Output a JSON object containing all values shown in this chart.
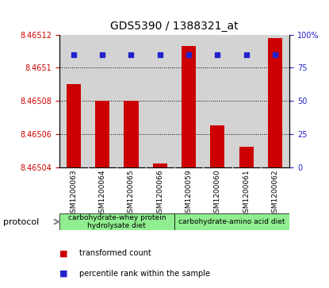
{
  "title": "GDS5390 / 1388321_at",
  "samples": [
    "GSM1200063",
    "GSM1200064",
    "GSM1200065",
    "GSM1200066",
    "GSM1200059",
    "GSM1200060",
    "GSM1200061",
    "GSM1200062"
  ],
  "red_values": [
    8.46509,
    8.46508,
    8.46508,
    8.465042,
    8.465113,
    8.465065,
    8.465052,
    8.465118
  ],
  "blue_values": [
    85,
    85,
    85,
    85,
    85,
    85,
    85,
    85
  ],
  "ylim_left": [
    8.46504,
    8.46512
  ],
  "ylim_right": [
    0,
    100
  ],
  "yticks_left": [
    8.46504,
    8.46506,
    8.46508,
    8.4651,
    8.46512
  ],
  "ytick_labels_left": [
    "8.46504",
    "8.46506",
    "8.46508",
    "8.4651",
    "8.46512"
  ],
  "yticks_right": [
    0,
    25,
    50,
    75,
    100
  ],
  "ytick_labels_right": [
    "0",
    "25",
    "50",
    "75",
    "100%"
  ],
  "groups": [
    {
      "label": "carbohydrate-whey protein\nhydrolysate diet",
      "color": "#90ee90",
      "start": 0,
      "end": 4
    },
    {
      "label": "carbohydrate-amino acid diet",
      "color": "#90ee90",
      "start": 4,
      "end": 8
    }
  ],
  "protocol_label": "protocol",
  "bar_color": "#cc0000",
  "dot_color": "#2222cc",
  "bar_width": 0.5,
  "baseline": 8.46504,
  "legend_items": [
    {
      "color": "#cc0000",
      "label": "transformed count"
    },
    {
      "color": "#2222cc",
      "label": "percentile rank within the sample"
    }
  ],
  "grid_color": "black",
  "tick_color_left": "#cc0000",
  "tick_color_right": "#2222cc",
  "bg_color": "white",
  "sample_area_color": "#d3d3d3",
  "fig_width": 4.15,
  "fig_height": 3.63
}
